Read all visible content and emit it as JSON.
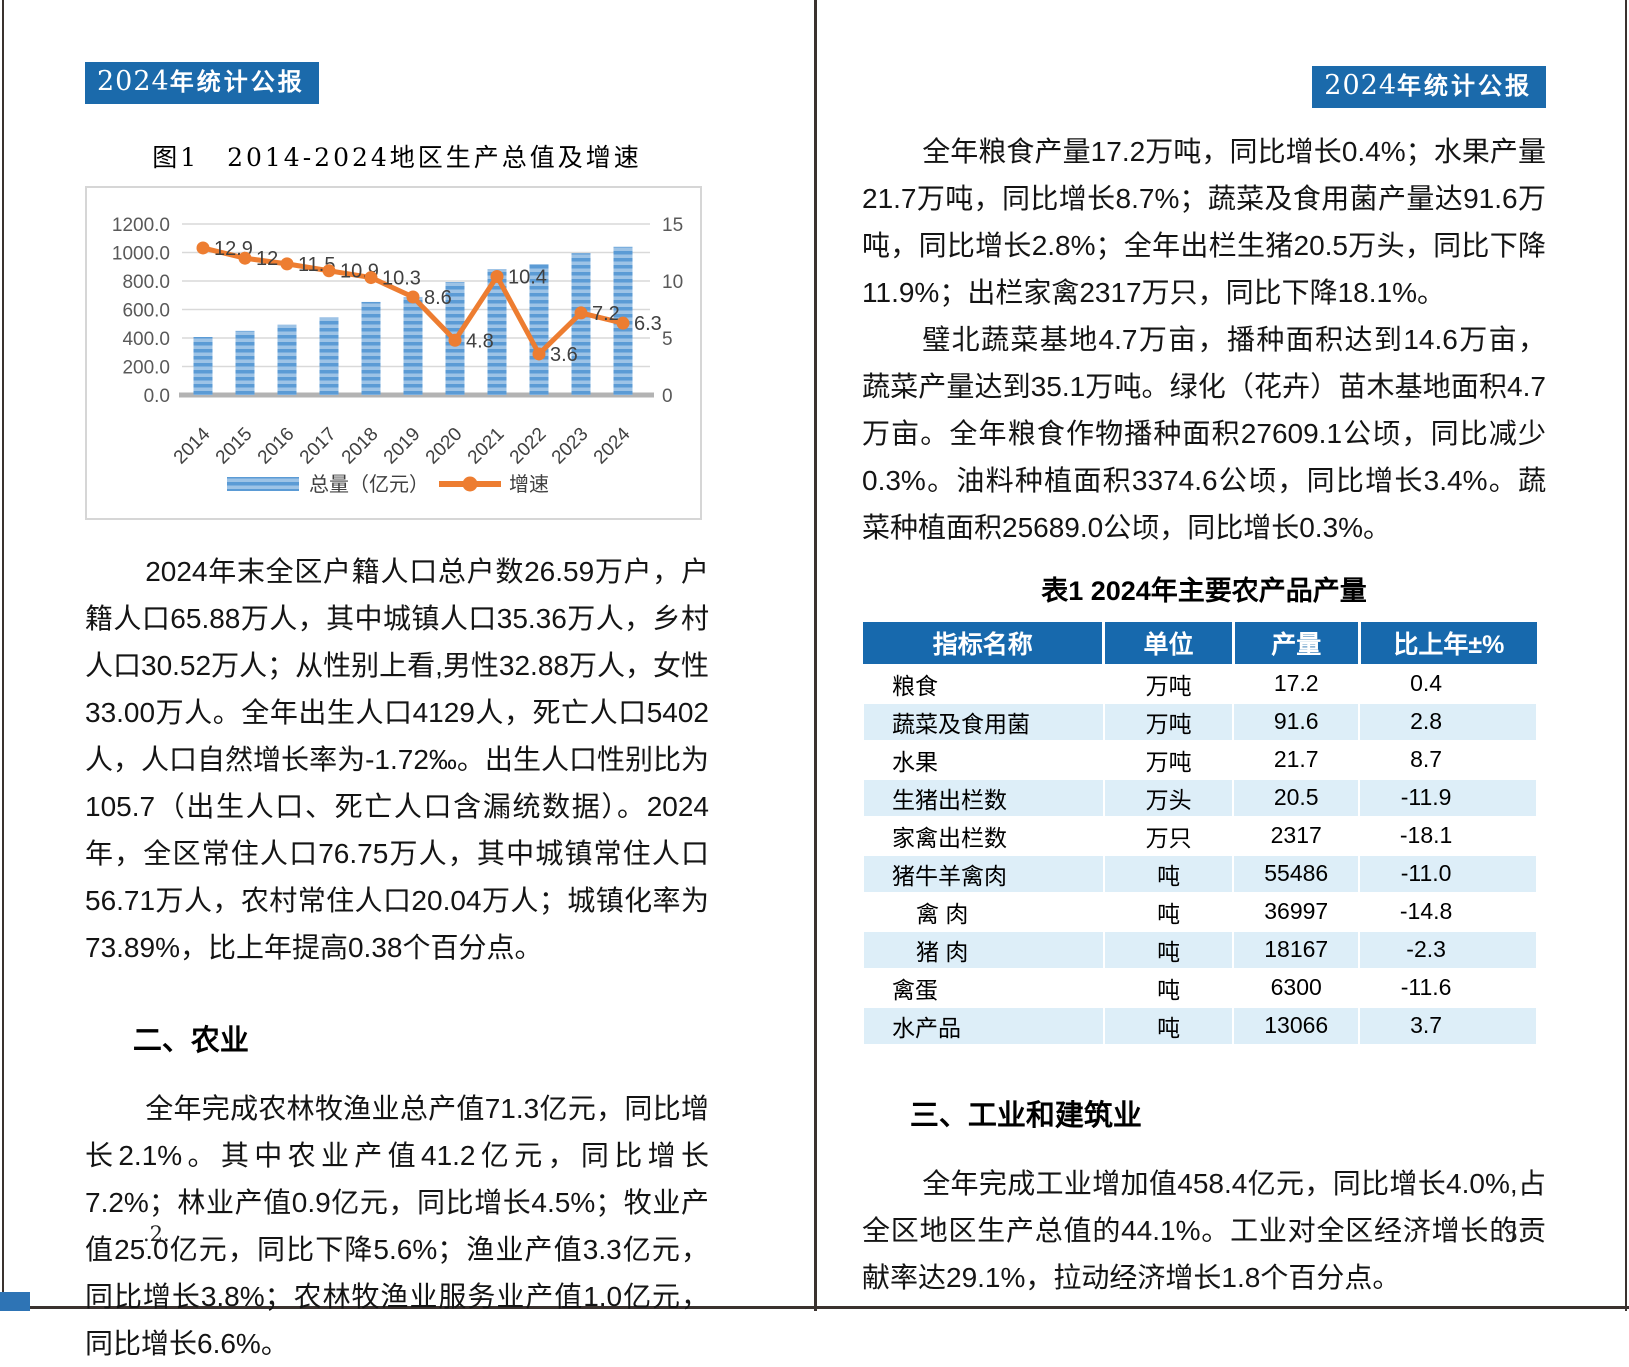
{
  "theme": {
    "primary_blue": "#1b6aab",
    "table_header_blue": "#1769ad",
    "row_alt_blue": "#ddeef8",
    "bar_blue": "#2e74b5",
    "line_orange": "#ed7d31"
  },
  "page_left": {
    "badge": {
      "year": "2024",
      "rest": "年统计公报"
    },
    "paragraphs": {
      "population": "2024年末全区户籍人口总户数26.59万户，户籍人口65.88万人，其中城镇人口35.36万人，乡村人口30.52万人；从性别上看,男性32.88万人，女性33.00万人。全年出生人口4129人，死亡人口5402人，人口自然增长率为-1.72‰。出生人口性别比为105.7（出生人口、死亡人口含漏统数据）。2024年，全区常住人口76.75万人，其中城镇常住人口56.71万人，农村常住人口20.04万人；城镇化率为73.89%，比上年提高0.38个百分点。",
      "agriculture": "全年完成农林牧渔业总产值71.3亿元，同比增长2.1%。其中农业产值41.2亿元，同比增长7.2%；林业产值0.9亿元，同比增长4.5%；牧业产值25.0亿元，同比下降5.6%；渔业产值3.3亿元，同比增长3.8%；农林牧渔业服务业产值1.0亿元，同比增长6.6%。"
    },
    "heading_agriculture": "二、农业",
    "page_number": ".2."
  },
  "chart_data": {
    "type": "bar",
    "title": "图1　2014-2024地区生产总值及增速",
    "categories": [
      "2014",
      "2015",
      "2016",
      "2017",
      "2018",
      "2019",
      "2020",
      "2021",
      "2022",
      "2023",
      "2024"
    ],
    "series": [
      {
        "name": "总量（亿元）",
        "type": "bar",
        "axis": "left",
        "values": [
          407,
          450,
          494,
          545,
          653,
          688,
          793,
          884,
          919,
          995,
          1040
        ]
      },
      {
        "name": "增速",
        "type": "line",
        "axis": "right",
        "values": [
          12.9,
          12,
          11.5,
          10.9,
          10.3,
          8.6,
          4.8,
          10.4,
          3.6,
          7.2,
          6.3
        ],
        "labels": [
          "12.9",
          "12",
          "11.5",
          "10.9",
          "10.3",
          "8.6",
          "4.8",
          "10.4",
          "3.6",
          "7.2",
          "6.3"
        ]
      }
    ],
    "left_axis": {
      "min": 0,
      "max": 1200,
      "step": 200
    },
    "right_axis": {
      "min": 0,
      "max": 15,
      "step": 5
    },
    "grid": true,
    "legend_position": "bottom",
    "colors": {
      "bar": "#5b9bd5",
      "bar_light": "#9dc3e6",
      "line": "#ed7d31",
      "axis_text": "#595959",
      "grid": "#d9d9d9",
      "axis_line": "#b3b3b3",
      "label": "#404040"
    }
  },
  "page_right": {
    "badge": {
      "year": "2024",
      "rest": "年统计公报"
    },
    "paragraphs": {
      "grain": "全年粮食产量17.2万吨，同比增长0.4%；水果产量21.7万吨，同比增长8.7%；蔬菜及食用菌产量达91.6万吨，同比增长2.8%；全年出栏生猪20.5万头，同比下降11.9%；出栏家禽2317万只，同比下降18.1%。",
      "vegetable_base": "璧北蔬菜基地4.7万亩，播种面积达到14.6万亩，蔬菜产量达到35.1万吨。绿化（花卉）苗木基地面积4.7万亩。全年粮食作物播种面积27609.1公顷，同比减少0.3%。油料种植面积3374.6公顷，同比增长3.4%。蔬菜种植面积25689.0公顷，同比增长0.3%。",
      "industry": "全年完成工业增加值458.4亿元，同比增长4.0%,占全区地区生产总值的44.1%。工业对全区经济增长的贡献率达29.1%，拉动经济增长1.8个百分点。"
    },
    "table": {
      "title": "表1 2024年主要农产品产量",
      "headers": [
        "指标名称",
        "单位",
        "产量",
        "比上年±%"
      ],
      "rows": [
        {
          "name": "粮食",
          "unit": "万吨",
          "output": "17.2",
          "yoy": "0.4",
          "indent": false
        },
        {
          "name": "蔬菜及食用菌",
          "unit": "万吨",
          "output": "91.6",
          "yoy": "2.8",
          "indent": false
        },
        {
          "name": "水果",
          "unit": "万吨",
          "output": "21.7",
          "yoy": "8.7",
          "indent": false
        },
        {
          "name": "生猪出栏数",
          "unit": "万头",
          "output": "20.5",
          "yoy": "-11.9",
          "indent": false
        },
        {
          "name": "家禽出栏数",
          "unit": "万只",
          "output": "2317",
          "yoy": "-18.1",
          "indent": false
        },
        {
          "name": "猪牛羊禽肉",
          "unit": "吨",
          "output": "55486",
          "yoy": "-11.0",
          "indent": false
        },
        {
          "name": "禽 肉",
          "unit": "吨",
          "output": "36997",
          "yoy": "-14.8",
          "indent": true
        },
        {
          "name": "猪 肉",
          "unit": "吨",
          "output": "18167",
          "yoy": "-2.3",
          "indent": true
        },
        {
          "name": "禽蛋",
          "unit": "吨",
          "output": "6300",
          "yoy": "-11.6",
          "indent": false
        },
        {
          "name": "水产品",
          "unit": "吨",
          "output": "13066",
          "yoy": "3.7",
          "indent": false
        }
      ]
    },
    "heading_industry": "三、工业和建筑业",
    "page_number": ".3."
  }
}
